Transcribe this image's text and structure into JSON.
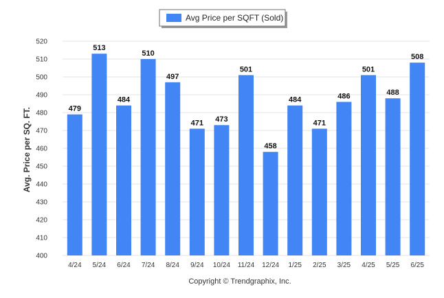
{
  "chart_data": {
    "type": "bar",
    "categories": [
      "4/24",
      "5/24",
      "6/24",
      "7/24",
      "8/24",
      "9/24",
      "10/24",
      "11/24",
      "12/24",
      "1/25",
      "2/25",
      "3/25",
      "4/25",
      "5/25",
      "6/25"
    ],
    "series": [
      {
        "name": "Avg Price per SQFT (Sold)",
        "values": [
          479,
          513,
          484,
          510,
          497,
          471,
          473,
          501,
          458,
          484,
          471,
          486,
          501,
          488,
          508
        ],
        "color": "#4285f4"
      }
    ],
    "ylabel": "Avg. Price per SQ. FT.",
    "xlabel": "",
    "ylim": [
      400,
      520
    ],
    "yticks": [
      400,
      410,
      420,
      430,
      440,
      450,
      460,
      470,
      480,
      490,
      500,
      510,
      520
    ],
    "grid": true,
    "legend_position": "top-center",
    "data_labels": true
  },
  "footer": {
    "copyright": "Copyright © Trendgraphix, Inc."
  }
}
